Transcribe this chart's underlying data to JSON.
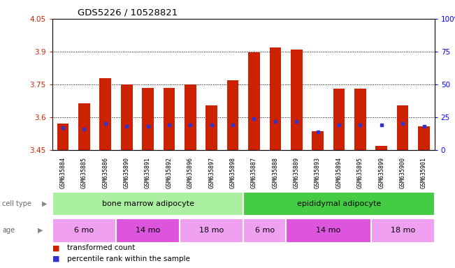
{
  "title": "GDS5226 / 10528821",
  "samples": [
    "GSM635884",
    "GSM635885",
    "GSM635886",
    "GSM635890",
    "GSM635891",
    "GSM635892",
    "GSM635896",
    "GSM635897",
    "GSM635898",
    "GSM635887",
    "GSM635888",
    "GSM635889",
    "GSM635893",
    "GSM635894",
    "GSM635895",
    "GSM635899",
    "GSM635900",
    "GSM635901"
  ],
  "transformed_counts": [
    3.57,
    3.665,
    3.78,
    3.75,
    3.735,
    3.735,
    3.75,
    3.655,
    3.77,
    3.895,
    3.92,
    3.91,
    3.535,
    3.73,
    3.73,
    3.47,
    3.655,
    3.56
  ],
  "percentile_ranks": [
    17,
    16,
    20,
    18,
    18,
    19,
    19,
    19,
    19,
    24,
    22,
    22,
    14,
    19,
    19,
    19,
    20,
    18
  ],
  "ymin": 3.45,
  "ymax": 4.05,
  "yticks": [
    3.45,
    3.6,
    3.75,
    3.9,
    4.05
  ],
  "ytick_labels": [
    "3.45",
    "3.6",
    "3.75",
    "3.9",
    "4.05"
  ],
  "right_yticks": [
    0,
    25,
    50,
    75,
    100
  ],
  "right_ytick_labels": [
    "0",
    "25",
    "50",
    "75",
    "100%"
  ],
  "bar_color": "#cc2200",
  "percentile_color": "#3333cc",
  "cell_type_groups": [
    {
      "label": "bone marrow adipocyte",
      "start": 0,
      "end": 9,
      "color": "#aaeea0"
    },
    {
      "label": "epididymal adipocyte",
      "start": 9,
      "end": 18,
      "color": "#44cc44"
    }
  ],
  "age_groups": [
    {
      "label": "6 mo",
      "start": 0,
      "end": 3,
      "color": "#f0a0f0"
    },
    {
      "label": "14 mo",
      "start": 3,
      "end": 6,
      "color": "#dd55dd"
    },
    {
      "label": "18 mo",
      "start": 6,
      "end": 9,
      "color": "#f0a0f0"
    },
    {
      "label": "6 mo",
      "start": 9,
      "end": 11,
      "color": "#f0a0f0"
    },
    {
      "label": "14 mo",
      "start": 11,
      "end": 15,
      "color": "#dd55dd"
    },
    {
      "label": "18 mo",
      "start": 15,
      "end": 18,
      "color": "#f0a0f0"
    }
  ],
  "cell_type_label": "cell type",
  "age_label": "age",
  "legend_items": [
    {
      "label": "transformed count",
      "color": "#cc2200"
    },
    {
      "label": "percentile rank within the sample",
      "color": "#3333cc"
    }
  ],
  "bg_color": "#f0f0f0",
  "grid_color": "black",
  "grid_linewidth": 0.7
}
